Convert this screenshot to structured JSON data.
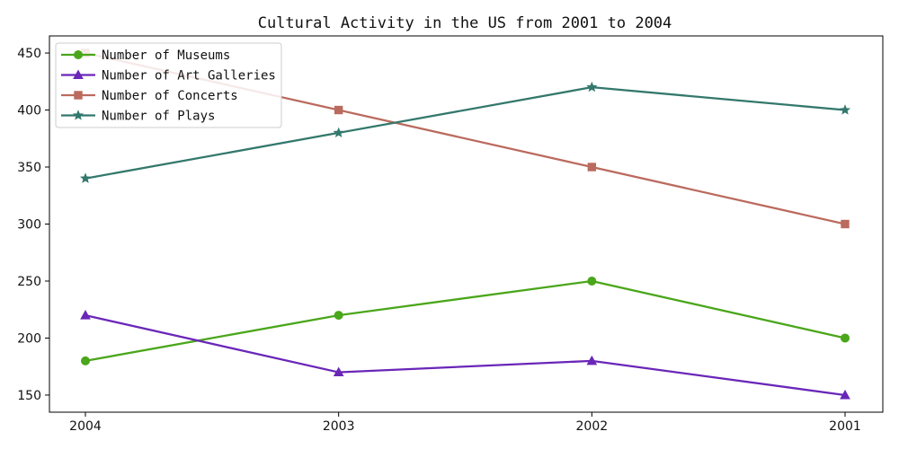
{
  "chart_data": {
    "type": "line",
    "title": "Cultural Activity in the US from 2001 to 2004",
    "xlabel": "",
    "ylabel": "",
    "categories": [
      "2004",
      "2003",
      "2002",
      "2001"
    ],
    "ylim": [
      135,
      465
    ],
    "yticks": [
      150,
      200,
      250,
      300,
      350,
      400,
      450
    ],
    "grid": false,
    "legend_position": "top-left",
    "series": [
      {
        "name": "Number of Museums",
        "values": [
          180,
          220,
          250,
          200
        ],
        "color": "#4aa61a",
        "marker": "circle"
      },
      {
        "name": "Number of Art Galleries",
        "values": [
          220,
          170,
          180,
          150
        ],
        "color": "#6a26b8",
        "marker": "triangle"
      },
      {
        "name": "Number of Concerts",
        "values": [
          450,
          400,
          350,
          300
        ],
        "color": "#bb6a5e",
        "marker": "square"
      },
      {
        "name": "Number of Plays",
        "values": [
          340,
          380,
          420,
          400
        ],
        "color": "#33786c",
        "marker": "star"
      }
    ]
  }
}
